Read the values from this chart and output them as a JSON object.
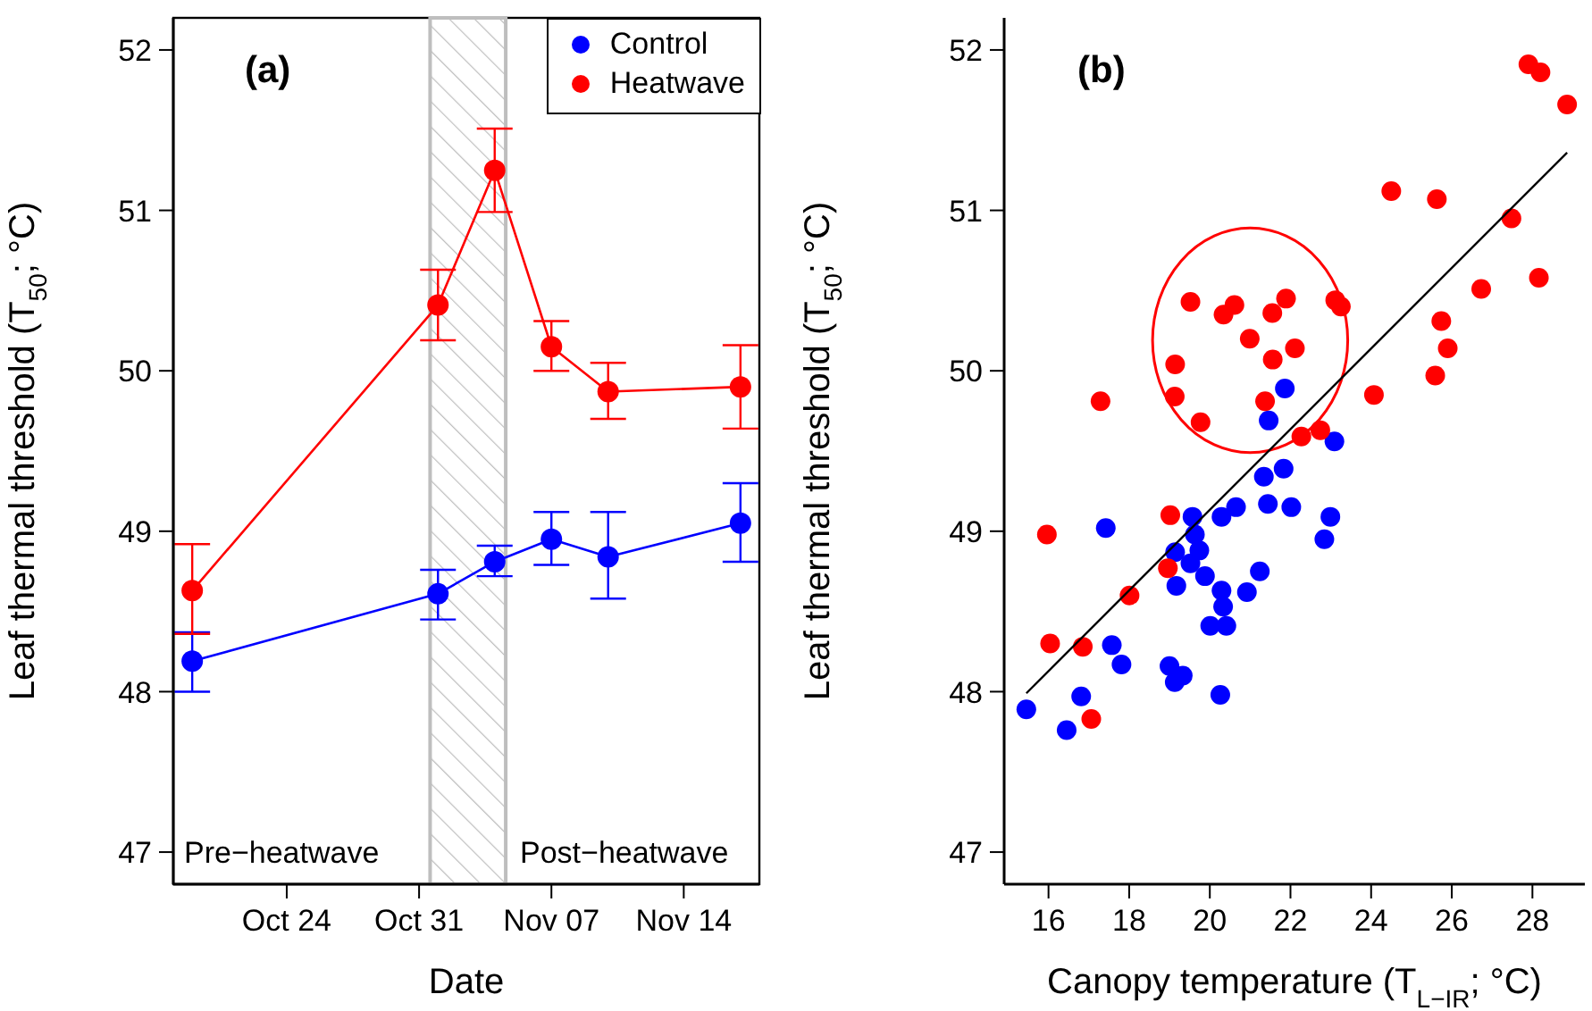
{
  "chart_data": [
    {
      "type": "line",
      "title": "(a)",
      "xlabel": "Date",
      "ylabel": "Leaf thermal threshold (T$_{50}$; °C)",
      "x": [
        "--10-19",
        "--11-01",
        "--11-04",
        "--11-07",
        "--11-10",
        "--11-17"
      ],
      "series": [
        {
          "name": "Control",
          "color": "#0000ff",
          "values": [
            48.19,
            48.61,
            48.81,
            48.95,
            48.84,
            49.05
          ],
          "errors": [
            [
              48.0,
              48.37
            ],
            [
              48.45,
              48.76
            ],
            [
              48.72,
              48.91
            ],
            [
              48.79,
              49.12
            ],
            [
              48.58,
              49.12
            ],
            [
              48.81,
              49.3
            ]
          ]
        },
        {
          "name": "Heatwave",
          "color": "#ff0000",
          "values": [
            48.63,
            50.41,
            51.25,
            50.15,
            49.87,
            49.9
          ],
          "errors": [
            [
              48.36,
              48.92
            ],
            [
              50.19,
              50.63
            ],
            [
              50.99,
              51.51
            ],
            [
              50.0,
              50.31
            ],
            [
              49.7,
              50.05
            ],
            [
              49.64,
              50.16
            ]
          ]
        }
      ],
      "xlim": [
        "--10-18",
        "--11-18"
      ],
      "xticks": [
        {
          "value": "--10-24",
          "label": "Oct 24"
        },
        {
          "value": "--10-31",
          "label": "Oct 31"
        },
        {
          "value": "--11-07",
          "label": "Nov 07"
        },
        {
          "value": "--11-14",
          "label": "Nov 14"
        }
      ],
      "ylim": [
        46.8,
        52.2
      ],
      "yticks": [
        47,
        48,
        49,
        50,
        51,
        52
      ],
      "bands": [
        {
          "axis": "x",
          "from": "--10-31T14:00",
          "to": "--11-04T14:00",
          "color": "#bebebe"
        }
      ],
      "annotations": [
        "Pre−heatwave",
        "Post−heatwave"
      ],
      "marker": "circle",
      "line_style": "solid",
      "grid": false,
      "legend": "top right"
    },
    {
      "type": "scatter",
      "title": "(b)",
      "xlabel": "Canopy temperature (T$_{L−IR}$; °C)",
      "ylabel": "Leaf thermal threshold (T$_{50}$; °C)",
      "series": [
        {
          "color": "#0000ff",
          "x": [
            15.45,
            16.45,
            16.81,
            17.42,
            17.57,
            17.81,
            19.0,
            19.13,
            19.33,
            19.17,
            19.14,
            19.52,
            19.57,
            19.63,
            19.74,
            19.88,
            20.01,
            20.26,
            20.29,
            20.29,
            20.33,
            20.41,
            20.65,
            20.92,
            21.24,
            21.34,
            21.44,
            21.83,
            22.02,
            22.84,
            22.99,
            23.09,
            21.46,
            21.86
          ],
          "values": [
            47.89,
            47.76,
            47.97,
            49.02,
            48.29,
            48.17,
            48.16,
            48.06,
            48.1,
            48.66,
            48.87,
            48.8,
            49.09,
            48.98,
            48.88,
            48.72,
            48.41,
            47.98,
            49.09,
            48.63,
            48.53,
            48.41,
            49.15,
            48.62,
            48.75,
            49.34,
            49.17,
            49.39,
            49.15,
            48.95,
            49.09,
            49.56,
            49.69,
            49.89
          ]
        },
        {
          "color": "#ff0000",
          "x": [
            15.96,
            16.04,
            16.85,
            17.06,
            18.01,
            19.02,
            18.96,
            17.29,
            19.14,
            19.13,
            19.77,
            19.52,
            20.34,
            20.61,
            21.55,
            21.89,
            20.99,
            21.56,
            22.11,
            21.37,
            22.27,
            22.74,
            23.11,
            23.25,
            24.07,
            24.5,
            25.63,
            25.59,
            25.74,
            25.9,
            26.73,
            27.48,
            28.16,
            27.9,
            28.2,
            28.86
          ],
          "values": [
            48.98,
            48.3,
            48.28,
            47.83,
            48.6,
            49.1,
            48.77,
            49.81,
            50.04,
            49.84,
            49.68,
            50.43,
            50.35,
            50.41,
            50.36,
            50.45,
            50.2,
            50.07,
            50.14,
            49.81,
            49.59,
            49.63,
            50.44,
            50.4,
            49.85,
            51.12,
            51.07,
            49.97,
            50.31,
            50.14,
            50.51,
            50.95,
            50.58,
            51.91,
            51.86,
            51.66
          ]
        },
        {
          "type": "line",
          "marker": "none",
          "color": "#000000",
          "x": [
            15.45,
            28.86
          ],
          "values": [
            47.99,
            51.36
          ]
        }
      ],
      "xlim": [
        14.9,
        29.3
      ],
      "xticks": [
        16,
        18,
        20,
        22,
        24,
        26,
        28
      ],
      "ylim": [
        46.8,
        52.2
      ],
      "yticks": [
        47,
        48,
        49,
        50,
        51,
        52
      ],
      "marker": "circle",
      "grid": false
    }
  ]
}
